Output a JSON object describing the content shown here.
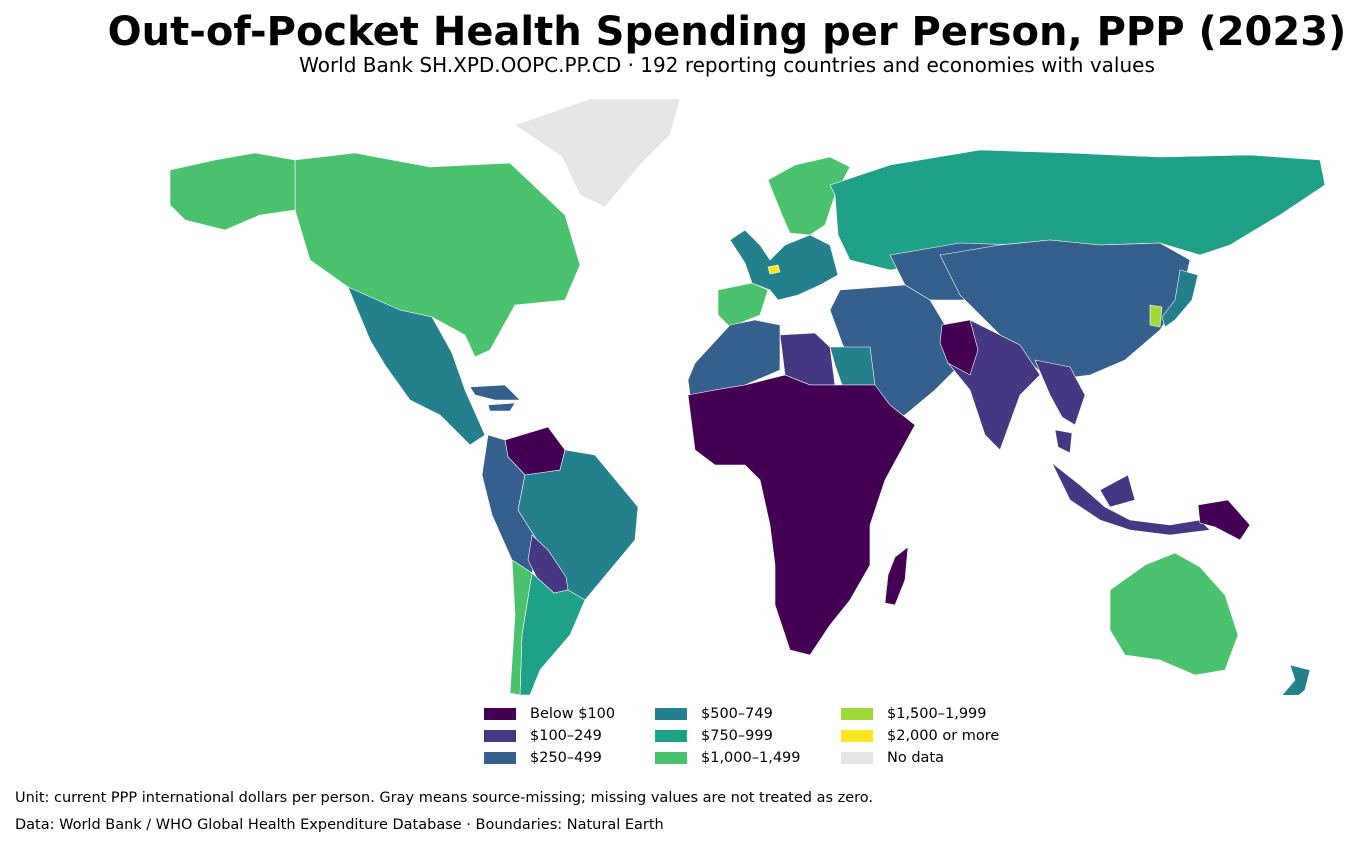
{
  "title": "Out-of-Pocket Health Spending per Person, PPP (2023)",
  "subtitle": "World Bank SH.XPD.OOPC.PP.CD · 192 reporting countries and economies with values",
  "legend": [
    {
      "label": "Below $100",
      "color": "#440154"
    },
    {
      "label": "$100–249",
      "color": "#453781"
    },
    {
      "label": "$250–499",
      "color": "#355f8d"
    },
    {
      "label": "$500–749",
      "color": "#25808e"
    },
    {
      "label": "$750–999",
      "color": "#1fa187"
    },
    {
      "label": "$1,000–1,499",
      "color": "#4ac16d"
    },
    {
      "label": "$1,500–1,999",
      "color": "#a0da39"
    },
    {
      "label": "$2,000 or more",
      "color": "#fde725"
    },
    {
      "label": "No data",
      "color": "#e5e5e5"
    }
  ],
  "footer": {
    "unit_note": "Unit: current PPP international dollars per person. Gray means source-missing; missing values are not treated as zero.",
    "source_note": "Data: World Bank / WHO Global Health Expenditure Database · Boundaries: Natural Earth"
  },
  "map": {
    "regions": [
      {
        "name": "North America",
        "bin": 5
      },
      {
        "name": "Greenland",
        "bin": 8
      },
      {
        "name": "Alaska",
        "bin": 5
      },
      {
        "name": "Mexico & Central America",
        "bin": 3
      },
      {
        "name": "Caribbean",
        "bin": 2
      },
      {
        "name": "Venezuela",
        "bin": 0
      },
      {
        "name": "Colombia, Ecuador & Peru",
        "bin": 2
      },
      {
        "name": "Brazil",
        "bin": 3
      },
      {
        "name": "Bolivia & Paraguay",
        "bin": 1
      },
      {
        "name": "Argentina",
        "bin": 4
      },
      {
        "name": "Chile",
        "bin": 5
      },
      {
        "name": "Iberia",
        "bin": 5
      },
      {
        "name": "Western Europe",
        "bin": 3
      },
      {
        "name": "Switzerland",
        "bin": 7
      },
      {
        "name": "Scandinavia",
        "bin": 5
      },
      {
        "name": "Russia",
        "bin": 4
      },
      {
        "name": "Central Asia",
        "bin": 2
      },
      {
        "name": "Middle East",
        "bin": 2
      },
      {
        "name": "China & Mongolia",
        "bin": 2
      },
      {
        "name": "India",
        "bin": 1
      },
      {
        "name": "Pakistan",
        "bin": 0
      },
      {
        "name": "Southeast Asia",
        "bin": 1
      },
      {
        "name": "South Korea",
        "bin": 6
      },
      {
        "name": "Japan",
        "bin": 3
      },
      {
        "name": "Northwest Africa",
        "bin": 2
      },
      {
        "name": "Libya",
        "bin": 1
      },
      {
        "name": "Egypt",
        "bin": 3
      },
      {
        "name": "Sub-Saharan Africa",
        "bin": 0
      },
      {
        "name": "Madagascar",
        "bin": 0
      },
      {
        "name": "Indonesia",
        "bin": 1
      },
      {
        "name": "Papua New Guinea",
        "bin": 0
      },
      {
        "name": "Australia",
        "bin": 5
      },
      {
        "name": "New Zealand",
        "bin": 3
      }
    ]
  }
}
